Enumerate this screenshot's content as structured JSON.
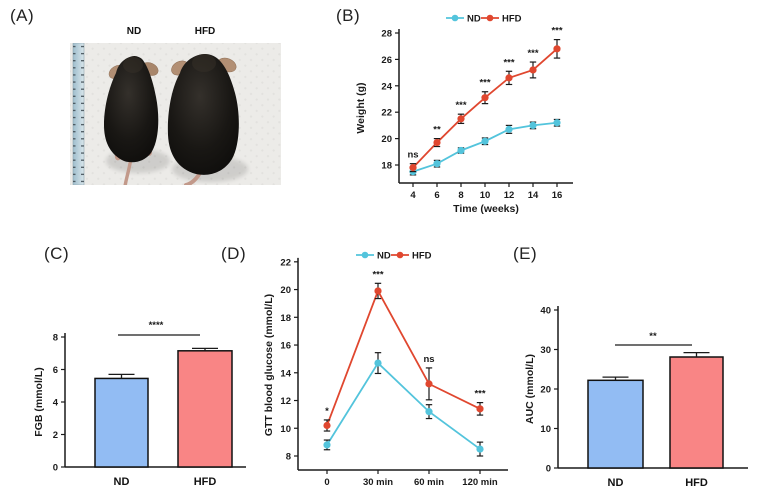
{
  "panel_labels": {
    "a": "(A)",
    "b": "(B)",
    "c": "(C)",
    "d": "(D)",
    "e": "(E)"
  },
  "photo": {
    "nd_label": "ND",
    "hfd_label": "HFD"
  },
  "colors": {
    "nd_line": "#53C4DC",
    "hfd_line": "#E0472F",
    "nd_bar": "#92BCF3",
    "hfd_bar": "#F98585",
    "axis": "#1a1a1a"
  },
  "chart_data": [
    {
      "id": "weight",
      "panel": "B",
      "type": "line",
      "x": [
        4,
        6,
        8,
        10,
        12,
        14,
        16
      ],
      "xlabel": "Time (weeks)",
      "ylabel": "Weight (g)",
      "ylim": [
        16.6,
        28.5
      ],
      "yticks": [
        18,
        20,
        22,
        24,
        26,
        28
      ],
      "legend_position": "top",
      "series": [
        {
          "name": "ND",
          "color": "#53C4DC",
          "values": [
            17.5,
            18.1,
            19.1,
            19.8,
            20.7,
            21.0,
            21.2
          ],
          "errors": [
            0.25,
            0.25,
            0.2,
            0.25,
            0.3,
            0.25,
            0.25
          ]
        },
        {
          "name": "HFD",
          "color": "#E0472F",
          "values": [
            17.8,
            19.7,
            21.5,
            23.1,
            24.6,
            25.2,
            26.8
          ],
          "errors": [
            0.3,
            0.3,
            0.35,
            0.45,
            0.5,
            0.6,
            0.7
          ]
        }
      ],
      "significance": [
        "ns",
        "**",
        "***",
        "***",
        "***",
        "***",
        "***"
      ]
    },
    {
      "id": "fgb",
      "panel": "C",
      "type": "bar",
      "categories": [
        "ND",
        "HFD"
      ],
      "values": [
        5.45,
        7.15
      ],
      "errors": [
        0.25,
        0.15
      ],
      "bar_colors": [
        "#92BCF3",
        "#F98585"
      ],
      "ylabel": "FGB (mmol/L)",
      "ylim": [
        0,
        8
      ],
      "yticks": [
        0,
        2,
        4,
        6,
        8
      ],
      "significance": "****"
    },
    {
      "id": "gtt",
      "panel": "D",
      "type": "line",
      "x_labels": [
        "0",
        "30 min",
        "60 min",
        "120 min"
      ],
      "ylabel": "GTT blood glucose (mmol/L)",
      "ylim": [
        7,
        22
      ],
      "yticks": [
        8,
        10,
        12,
        14,
        16,
        18,
        20,
        22
      ],
      "legend_position": "top",
      "series": [
        {
          "name": "ND",
          "color": "#53C4DC",
          "values": [
            8.8,
            14.7,
            11.2,
            8.5
          ],
          "errors": [
            0.35,
            0.75,
            0.5,
            0.5
          ]
        },
        {
          "name": "HFD",
          "color": "#E0472F",
          "values": [
            10.2,
            19.9,
            13.2,
            11.4
          ],
          "errors": [
            0.4,
            0.55,
            1.15,
            0.45
          ]
        }
      ],
      "significance": [
        "*",
        "***",
        "ns",
        "***"
      ]
    },
    {
      "id": "auc",
      "panel": "E",
      "type": "bar",
      "categories": [
        "ND",
        "HFD"
      ],
      "values": [
        22.2,
        28.1
      ],
      "errors": [
        0.8,
        1.1
      ],
      "bar_colors": [
        "#92BCF3",
        "#F98585"
      ],
      "ylabel": "AUC (mmol/L)",
      "ylim": [
        0,
        40
      ],
      "yticks": [
        0,
        10,
        20,
        30,
        40
      ],
      "significance": "**"
    }
  ]
}
